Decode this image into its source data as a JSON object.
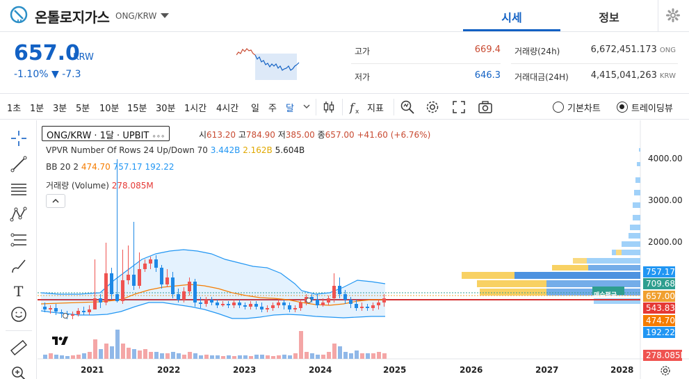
{
  "header": {
    "coin_name": "온톨로지가스",
    "pair": "ONG/KRW",
    "tabs": [
      {
        "label": "시세",
        "active": true
      },
      {
        "label": "정보",
        "active": false
      }
    ],
    "icons": [
      "coin-logo-icon",
      "chevron-down-icon",
      "gear-icon"
    ]
  },
  "price": {
    "current": "657.0",
    "unit": "KRW",
    "change_pct": "-1.10%",
    "change_abs": "▼ -7.3",
    "high_label": "고가",
    "high_value": "669.4",
    "low_label": "저가",
    "low_value": "646.3",
    "volume_label": "거래량(24h)",
    "volume_value": "6,672,451.173",
    "volume_unit": "ONG",
    "amount_label": "거래대금(24H)",
    "amount_value": "4,415,041,263",
    "amount_unit": "KRW",
    "colors": {
      "down": "#1261c4",
      "up": "#c84a31"
    }
  },
  "toolbar": {
    "timeframes": [
      "1초",
      "1분",
      "3분",
      "5분",
      "10분",
      "15분",
      "30분",
      "1시간",
      "4시간",
      "일",
      "주",
      "달"
    ],
    "active_timeframe": "달",
    "indicator_label": "지표",
    "basic_chart_label": "기본차트",
    "tradingview_label": "트레이딩뷰",
    "selected_view": "트레이딩뷰"
  },
  "chart": {
    "legend_title": "ONG/KRW · 1달 · UPBIT",
    "legend_dots": "∘∘∘",
    "ohlc": {
      "open_label": "시",
      "open": "613.20",
      "high_label": "고",
      "high": "784.90",
      "low_label": "저",
      "low": "385.00",
      "close_label": "종",
      "close": "657.00",
      "change": "+41.60 (+6.76%)"
    },
    "vpvr": {
      "label": "VPVR Number Of Rows 24 Up/Down 70",
      "v1": "3.442B",
      "v2": "2.162B",
      "v3": "5.604B"
    },
    "bb": {
      "label": "BB 20 2",
      "v1": "474.70",
      "v2": "757.17",
      "v3": "192.22"
    },
    "volume": {
      "label": "거래량 (Volume)",
      "value": "278.085M"
    },
    "price_axis": [
      "4000.00",
      "3000.00",
      "2000.00"
    ],
    "price_tags": [
      {
        "value": "757.17",
        "color": "#2196f3"
      },
      {
        "value": "709.68",
        "color": "#2e9e8f"
      },
      {
        "value": "657.00",
        "color": "#f0a030"
      },
      {
        "value": "543.83",
        "color": "#e53935"
      },
      {
        "value": "474.70",
        "color": "#f57c00"
      },
      {
        "value": "192.22",
        "color": "#2196f3"
      },
      {
        "value": "278.085M",
        "color": "#ef5350"
      }
    ],
    "poc_label": "매수평균",
    "years": [
      "2021",
      "2022",
      "2023",
      "2024",
      "2025",
      "2026",
      "2027",
      "2028"
    ]
  }
}
